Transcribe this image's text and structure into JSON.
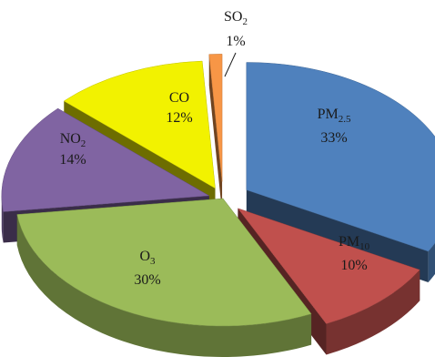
{
  "chart_data": {
    "type": "pie",
    "style": "3d-exploded",
    "slices": [
      {
        "label": "PM",
        "sub": "2.5",
        "value": 33,
        "pct_text": "33%",
        "color": "#4f81bd"
      },
      {
        "label": "PM",
        "sub": "10",
        "value": 10,
        "pct_text": "10%",
        "color": "#c0504d"
      },
      {
        "label": "O",
        "sub": "3",
        "value": 30,
        "pct_text": "30%",
        "color": "#9bbb59"
      },
      {
        "label": "NO",
        "sub": "2",
        "value": 14,
        "pct_text": "14%",
        "color": "#8064a2"
      },
      {
        "label": "CO",
        "sub": "",
        "value": 12,
        "pct_text": "12%",
        "color": "#f2f200"
      },
      {
        "label": "SO",
        "sub": "2",
        "value": 1,
        "pct_text": "1%",
        "color": "#f79646"
      }
    ],
    "title": "",
    "legend": "none"
  }
}
